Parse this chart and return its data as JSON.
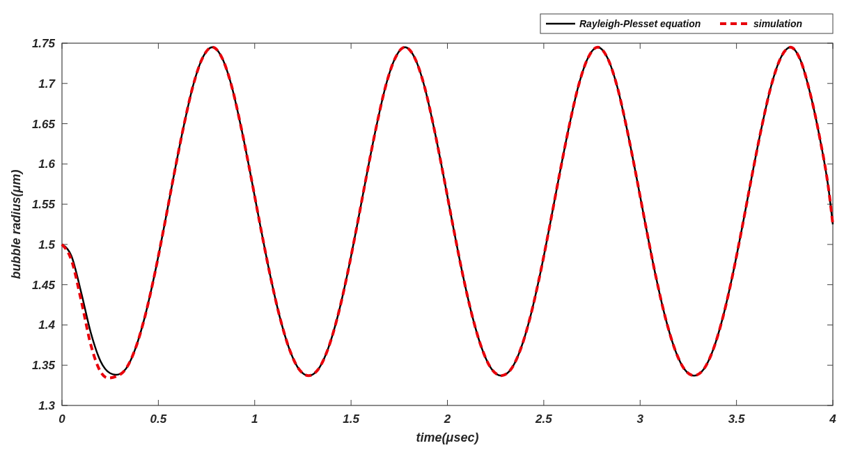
{
  "chart_data": {
    "type": "line",
    "xlabel": "time(μsec)",
    "ylabel": "bubble radius(μm)",
    "xlim": [
      0,
      4
    ],
    "xticks": [
      0,
      0.5,
      1,
      1.5,
      2,
      2.5,
      3,
      3.5,
      4
    ],
    "ylim": [
      1.3,
      1.75
    ],
    "yticks": [
      1.3,
      1.35,
      1.4,
      1.45,
      1.5,
      1.55,
      1.6,
      1.65,
      1.7,
      1.75
    ],
    "grid": false,
    "legend": "top right",
    "marker": "none",
    "series": [
      {
        "name": "Rayleigh-Plesset equation",
        "color": "#000000",
        "line_style": "solid",
        "x": [
          0,
          0.05,
          0.1,
          0.15,
          0.2,
          0.25,
          0.28,
          0.33,
          0.38,
          0.43,
          0.48,
          0.53,
          0.58,
          0.63,
          0.68,
          0.73,
          0.78,
          0.83,
          0.88,
          0.93,
          0.98,
          1.03,
          1.08,
          1.13,
          1.18,
          1.23,
          1.28,
          1.33,
          1.38,
          1.43,
          1.48,
          1.53,
          1.58,
          1.63,
          1.68,
          1.73,
          1.78,
          1.83,
          1.88,
          1.93,
          1.98,
          2.03,
          2.08,
          2.13,
          2.18,
          2.23,
          2.28,
          2.33,
          2.38,
          2.43,
          2.48,
          2.53,
          2.58,
          2.63,
          2.68,
          2.73,
          2.78,
          2.83,
          2.88,
          2.93,
          2.98,
          3.03,
          3.08,
          3.13,
          3.18,
          3.23,
          3.28,
          3.33,
          3.38,
          3.43,
          3.48,
          3.53,
          3.58,
          3.63,
          3.68,
          3.73,
          3.78,
          3.83,
          3.88,
          3.93,
          3.98,
          4
        ],
        "values": [
          1.5,
          1.485,
          1.44,
          1.39,
          1.355,
          1.34,
          1.338,
          1.345,
          1.37,
          1.41,
          1.462,
          1.522,
          1.585,
          1.645,
          1.697,
          1.732,
          1.745,
          1.732,
          1.697,
          1.645,
          1.585,
          1.522,
          1.462,
          1.41,
          1.37,
          1.345,
          1.337,
          1.345,
          1.37,
          1.41,
          1.462,
          1.522,
          1.585,
          1.645,
          1.697,
          1.732,
          1.745,
          1.732,
          1.697,
          1.645,
          1.585,
          1.522,
          1.462,
          1.41,
          1.37,
          1.345,
          1.337,
          1.345,
          1.37,
          1.41,
          1.462,
          1.522,
          1.585,
          1.645,
          1.697,
          1.732,
          1.745,
          1.732,
          1.697,
          1.645,
          1.585,
          1.522,
          1.462,
          1.41,
          1.37,
          1.345,
          1.337,
          1.345,
          1.37,
          1.41,
          1.462,
          1.522,
          1.585,
          1.645,
          1.697,
          1.732,
          1.745,
          1.73,
          1.69,
          1.635,
          1.565,
          1.525
        ]
      },
      {
        "name": "simulation",
        "color": "#e8000b",
        "line_style": "dashed",
        "x": [
          0,
          0.05,
          0.1,
          0.15,
          0.2,
          0.24,
          0.28,
          0.33,
          0.38,
          0.43,
          0.48,
          0.53,
          0.58,
          0.63,
          0.68,
          0.73,
          0.78,
          0.83,
          0.88,
          0.93,
          0.98,
          1.03,
          1.08,
          1.13,
          1.18,
          1.23,
          1.28,
          1.33,
          1.38,
          1.43,
          1.48,
          1.53,
          1.58,
          1.63,
          1.68,
          1.73,
          1.78,
          1.83,
          1.88,
          1.93,
          1.98,
          2.03,
          2.08,
          2.13,
          2.18,
          2.23,
          2.28,
          2.33,
          2.38,
          2.43,
          2.48,
          2.53,
          2.58,
          2.63,
          2.68,
          2.73,
          2.78,
          2.83,
          2.88,
          2.93,
          2.98,
          3.03,
          3.08,
          3.13,
          3.18,
          3.23,
          3.28,
          3.33,
          3.38,
          3.43,
          3.48,
          3.53,
          3.58,
          3.63,
          3.68,
          3.73,
          3.78,
          3.83,
          3.88,
          3.93,
          3.98,
          4
        ],
        "values": [
          1.5,
          1.48,
          1.43,
          1.375,
          1.342,
          1.334,
          1.336,
          1.345,
          1.37,
          1.41,
          1.462,
          1.522,
          1.585,
          1.645,
          1.697,
          1.732,
          1.745,
          1.732,
          1.697,
          1.645,
          1.585,
          1.522,
          1.462,
          1.41,
          1.37,
          1.345,
          1.337,
          1.345,
          1.37,
          1.41,
          1.462,
          1.522,
          1.585,
          1.645,
          1.697,
          1.732,
          1.745,
          1.732,
          1.697,
          1.645,
          1.585,
          1.522,
          1.462,
          1.41,
          1.37,
          1.345,
          1.337,
          1.345,
          1.37,
          1.41,
          1.462,
          1.522,
          1.585,
          1.645,
          1.697,
          1.732,
          1.745,
          1.732,
          1.697,
          1.645,
          1.585,
          1.522,
          1.462,
          1.41,
          1.37,
          1.345,
          1.337,
          1.345,
          1.37,
          1.41,
          1.462,
          1.522,
          1.585,
          1.645,
          1.697,
          1.732,
          1.745,
          1.73,
          1.69,
          1.635,
          1.565,
          1.525
        ]
      }
    ]
  }
}
